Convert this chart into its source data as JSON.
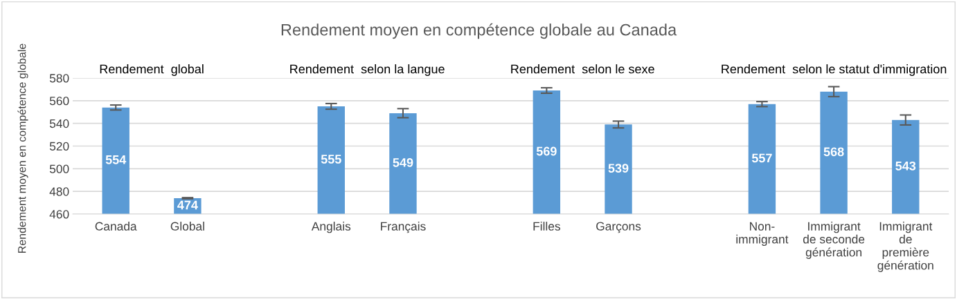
{
  "chart_data": {
    "type": "bar",
    "title": "Rendement moyen en compétence globale au Canada",
    "ylabel": "Rendement moyen en compétence globale",
    "categories": [
      "Canada",
      "Global",
      null,
      "Anglais",
      "Français",
      null,
      "Filles",
      "Garçons",
      null,
      "Non-\nimmigrant",
      "Immigrant\nde seconde\ngénération",
      "Immigrant\nde\npremière\ngénération"
    ],
    "values": [
      554,
      474,
      null,
      555,
      549,
      null,
      569,
      539,
      null,
      557,
      568,
      543
    ],
    "errors": [
      2.2,
      0.5,
      null,
      2.5,
      4,
      null,
      2.4,
      3,
      null,
      2.2,
      4.4,
      4.4
    ],
    "color": "#5b9bd5",
    "annotations": [
      "Rendement  global",
      "Rendement  selon la langue",
      "Rendement  selon le sexe",
      "Rendement  selon le statut d'immigration"
    ],
    "ylim": [
      460,
      580
    ],
    "yticks": [
      460,
      480,
      500,
      520,
      540,
      560,
      580
    ],
    "grid": "y",
    "data_labels": true
  }
}
